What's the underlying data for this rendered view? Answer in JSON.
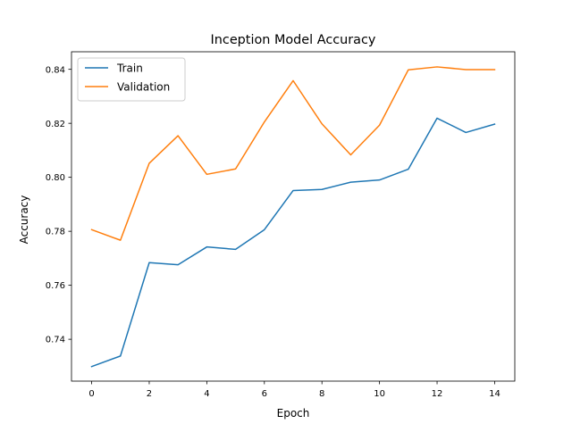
{
  "chart_data": {
    "type": "line",
    "title": "Inception Model Accuracy",
    "xlabel": "Epoch",
    "ylabel": "Accuracy",
    "x": [
      0,
      1,
      2,
      3,
      4,
      5,
      6,
      7,
      8,
      9,
      10,
      11,
      12,
      13,
      14
    ],
    "xlim": [
      -0.7,
      14.7
    ],
    "ylim": [
      0.7245,
      0.8465
    ],
    "xticks": [
      0,
      2,
      4,
      6,
      8,
      10,
      12,
      14
    ],
    "xtick_labels": [
      "0",
      "2",
      "4",
      "6",
      "8",
      "10",
      "12",
      "14"
    ],
    "yticks": [
      0.74,
      0.76,
      0.78,
      0.8,
      0.82,
      0.84
    ],
    "ytick_labels": [
      "0.74",
      "0.76",
      "0.78",
      "0.80",
      "0.82",
      "0.84"
    ],
    "grid": false,
    "legend_position": "upper-left",
    "series": [
      {
        "name": "Train",
        "color": "#1f77b4",
        "values": [
          0.7299,
          0.7338,
          0.7684,
          0.7676,
          0.7742,
          0.7733,
          0.7806,
          0.7951,
          0.7955,
          0.7982,
          0.799,
          0.803,
          0.8219,
          0.8166,
          0.8197
        ]
      },
      {
        "name": "Validation",
        "color": "#ff7f0e",
        "values": [
          0.7806,
          0.7767,
          0.8052,
          0.8154,
          0.8011,
          0.8031,
          0.8205,
          0.8358,
          0.8198,
          0.8083,
          0.8193,
          0.8398,
          0.8409,
          0.8399,
          0.8399
        ]
      }
    ]
  }
}
